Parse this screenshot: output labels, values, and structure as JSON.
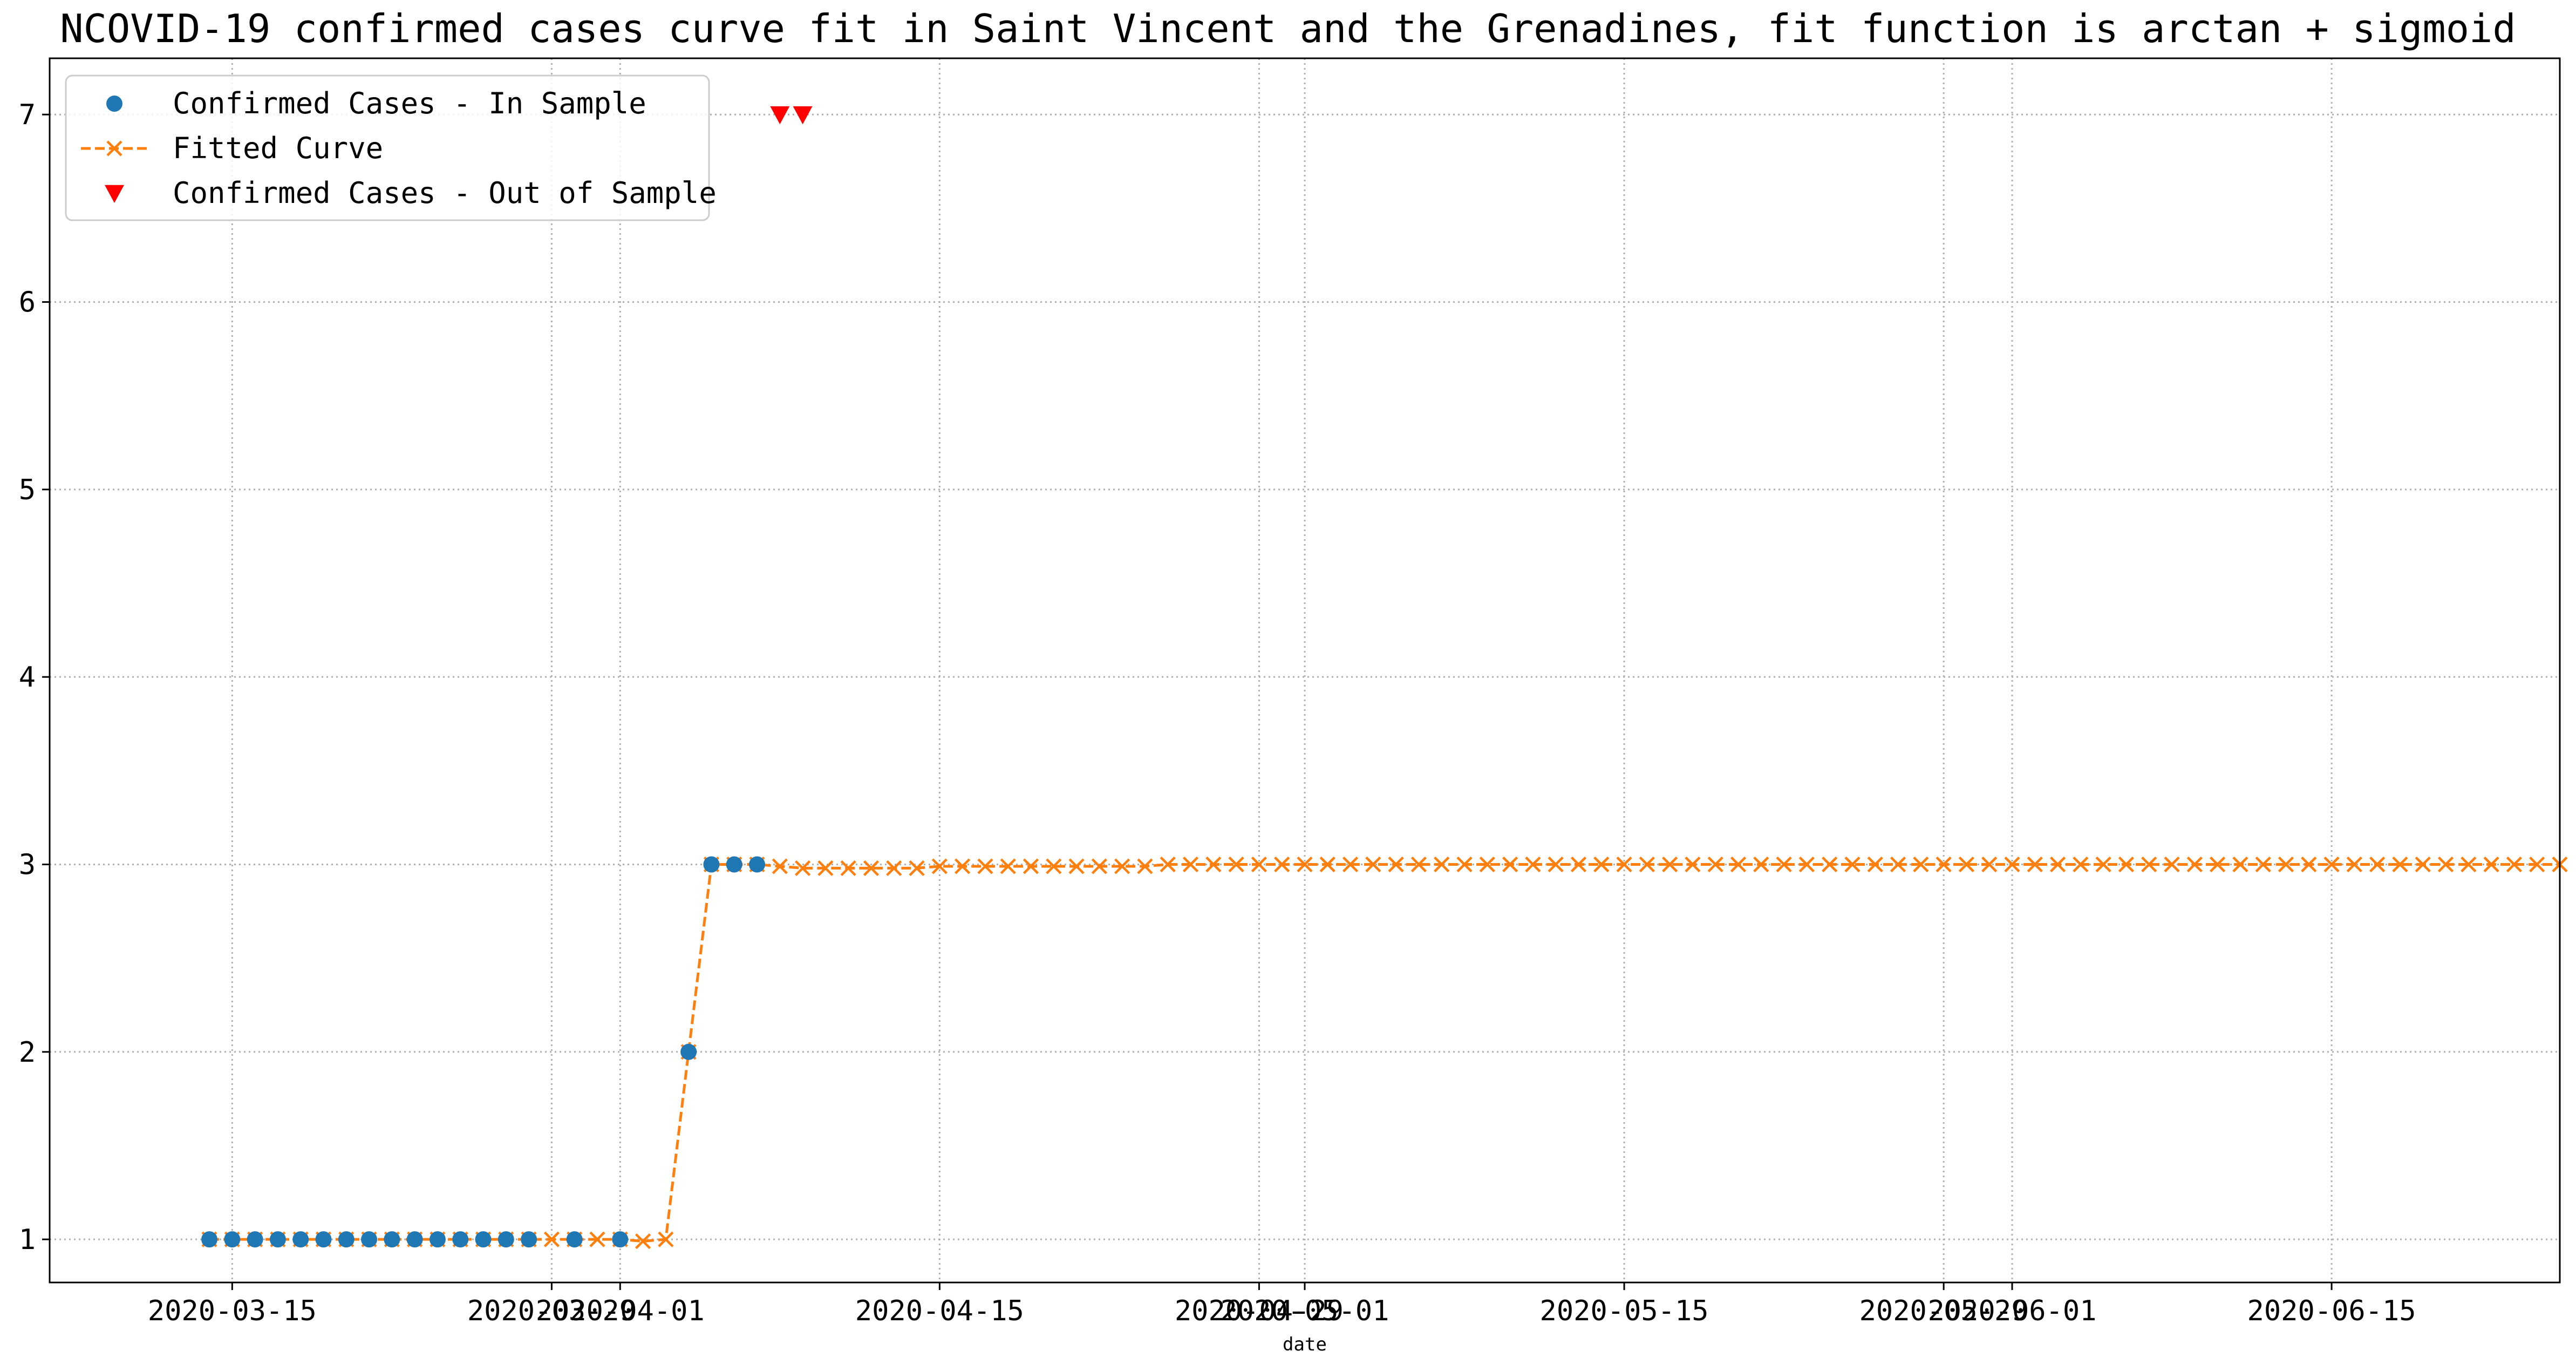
{
  "chart_data": {
    "type": "line",
    "title": "NCOVID-19 confirmed cases curve fit in Saint Vincent and the Grenadines, fit function is arctan + sigmoid",
    "xlabel": "date",
    "ylabel": "",
    "x_type": "date",
    "xlim": [
      "2020-03-07",
      "2020-06-25"
    ],
    "ylim": [
      0.77,
      7.3
    ],
    "x_tick_labels": [
      "2020-03-15",
      "2020-03-29",
      "2020-04-01",
      "2020-04-15",
      "2020-04-29",
      "2020-05-01",
      "2020-05-15",
      "2020-05-29",
      "2020-06-01",
      "2020-06-15"
    ],
    "y_tick_labels": [
      "1",
      "2",
      "3",
      "4",
      "5",
      "6",
      "7"
    ],
    "y_ticks": [
      1,
      2,
      3,
      4,
      5,
      6,
      7
    ],
    "grid": true,
    "legend_position": "top-left",
    "series": [
      {
        "name": "Confirmed Cases - In Sample",
        "marker": "circle",
        "line": "none",
        "color": "#1f77b4",
        "x": [
          "2020-03-14",
          "2020-03-15",
          "2020-03-16",
          "2020-03-17",
          "2020-03-18",
          "2020-03-19",
          "2020-03-20",
          "2020-03-21",
          "2020-03-22",
          "2020-03-23",
          "2020-03-24",
          "2020-03-25",
          "2020-03-26",
          "2020-03-27",
          "2020-03-28",
          "2020-03-30",
          "2020-04-01",
          "2020-04-04",
          "2020-04-05",
          "2020-04-06",
          "2020-04-07"
        ],
        "y": [
          1,
          1,
          1,
          1,
          1,
          1,
          1,
          1,
          1,
          1,
          1,
          1,
          1,
          1,
          1,
          1,
          1,
          2,
          3,
          3,
          3
        ]
      },
      {
        "name": "Fitted Curve",
        "marker": "x",
        "line": "dashed",
        "color": "#ff7f0e",
        "start": "2020-03-14",
        "y": [
          1,
          1,
          1,
          1,
          1,
          1,
          1,
          1,
          1,
          1,
          1,
          1,
          1,
          1,
          1,
          1,
          1,
          1,
          1,
          0.99,
          1,
          2,
          3,
          3,
          3,
          2.99,
          2.98,
          2.98,
          2.98,
          2.98,
          2.98,
          2.98,
          2.99,
          2.99,
          2.99,
          2.99,
          2.99,
          2.99,
          2.99,
          2.99,
          2.99,
          2.99,
          3,
          3,
          3,
          3,
          3,
          3,
          3,
          3,
          3,
          3,
          3,
          3,
          3,
          3,
          3,
          3,
          3,
          3,
          3,
          3,
          3,
          3,
          3,
          3,
          3,
          3,
          3,
          3,
          3,
          3,
          3,
          3,
          3,
          3,
          3,
          3,
          3,
          3,
          3,
          3,
          3,
          3,
          3,
          3,
          3,
          3,
          3,
          3,
          3,
          3,
          3,
          3,
          3,
          3,
          3,
          3,
          3,
          3,
          3,
          3,
          3,
          3
        ]
      },
      {
        "name": "Confirmed Cases - Out of Sample",
        "marker": "triangle-down",
        "line": "none",
        "color": "#ff0000",
        "x": [
          "2020-04-08",
          "2020-04-09"
        ],
        "y": [
          7,
          7
        ]
      }
    ]
  }
}
